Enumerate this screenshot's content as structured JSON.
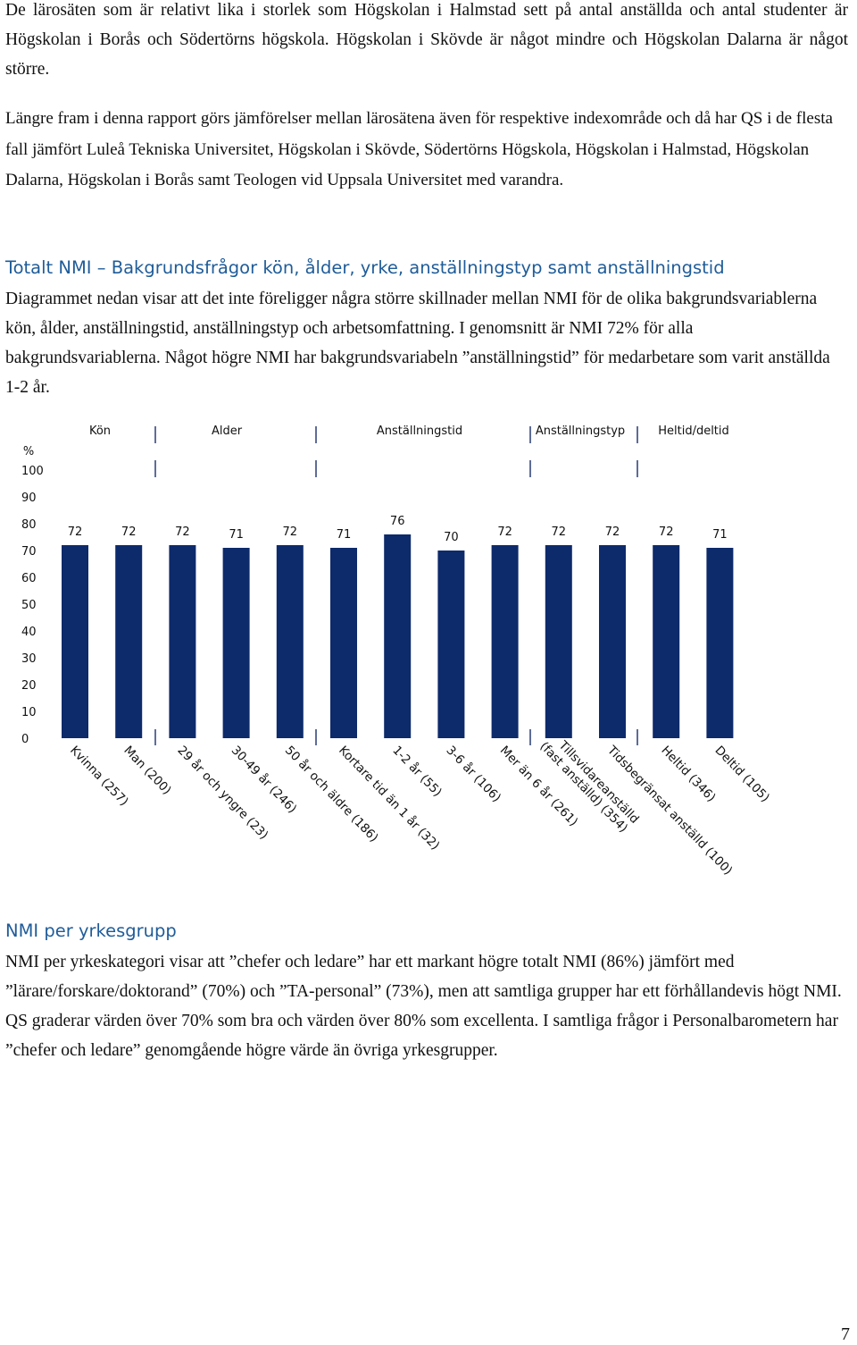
{
  "intro_paragraph": "De lärosäten som är relativt lika i storlek som Högskolan i Halmstad sett på antal anställda och antal studenter är Högskolan i Borås och Södertörns högskola. Högskolan i Skövde är något mindre och Högskolan Dalarna är något större.",
  "comparison_paragraph": "Längre fram i denna rapport görs jämförelser mellan lärosätena även för respektive indexområde och då har QS i de flesta fall jämfört Luleå Tekniska Universitet, Högskolan i Skövde, Södertörns Högskola, Högskolan i Halmstad, Högskolan Dalarna, Högskolan i Borås samt Teologen vid Uppsala Universitet med varandra.",
  "section1": {
    "heading": "Totalt NMI – Bakgrundsfrågor kön, ålder, yrke, anställningstyp samt anställningstid",
    "body": "Diagrammet nedan visar att det inte föreligger några större skillnader mellan NMI för de olika bakgrundsvariablerna kön, ålder, anställningstid, anställningstyp och arbetsomfattning. I genomsnitt är NMI 72% för alla bakgrundsvariablerna. Något högre NMI har bakgrundsvariabeln ”anställningstid” för medarbetare som varit anställda 1-2 år."
  },
  "chart_data": {
    "type": "bar",
    "ylabel": "%",
    "ylim": [
      0,
      100
    ],
    "yticks": [
      "100",
      "90",
      "80",
      "70",
      "60",
      "50",
      "40",
      "30",
      "20",
      "10",
      "0"
    ],
    "groups": [
      "Kön",
      "Alder",
      "Anställningstid",
      "Anställningstyp",
      "Heltid/deltid"
    ],
    "categories": [
      [
        "Kvinna (257)"
      ],
      [
        "Man (200)"
      ],
      [
        "29 år och yngre (23)"
      ],
      [
        "30-49 år (246)"
      ],
      [
        "50 år och äldre (186)"
      ],
      [
        "Kortare tid än 1 år (32)"
      ],
      [
        "1-2 år (55)"
      ],
      [
        "3-6 år (106)"
      ],
      [
        "Mer än 6 år (261)"
      ],
      [
        "Tillsvidareanställd",
        "(fast anställd) (354)"
      ],
      [
        "Tidsbegränsat anställd (100)"
      ],
      [
        "Heltid (346)"
      ],
      [
        "Deltid (105)"
      ]
    ],
    "values": [
      72,
      72,
      72,
      71,
      72,
      71,
      76,
      70,
      72,
      72,
      72,
      72,
      71
    ],
    "value_labels": [
      "72",
      "72",
      "72",
      "71",
      "72",
      "71",
      "76",
      "70",
      "72",
      "72",
      "72",
      "72",
      "71"
    ],
    "bar_color": "#0d2a6b",
    "grid": false,
    "legend": "none"
  },
  "section2": {
    "heading": "NMI per yrkesgrupp",
    "body": "NMI per yrkeskategori visar att ”chefer och ledare” har ett markant högre totalt NMI (86%) jämfört med ”lärare/forskare/doktorand” (70%) och ”TA-personal” (73%), men att samtliga grupper har ett förhållandevis högt NMI. QS graderar värden över 70% som bra och värden över 80% som excellenta. I samtliga frågor i Personalbarometern har ”chefer och ledare” genomgående högre värde än övriga yrkesgrupper."
  },
  "page_number": "7"
}
